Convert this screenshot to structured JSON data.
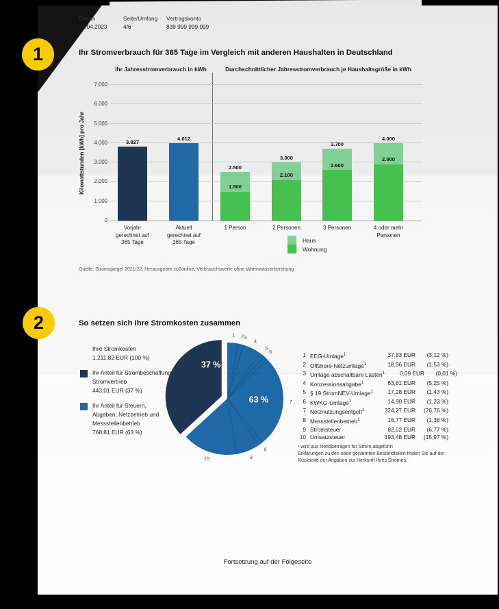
{
  "page": {
    "background_color": "#000000",
    "accent_yellow": "#F7CB05",
    "badges": {
      "one": "1",
      "two": "2"
    },
    "header": {
      "datum_label": "Datum",
      "datum_value": "04.04.2023",
      "seite_label": "Seite/Umfang",
      "seite_value": "4/6",
      "konto_label": "Vertragskonto",
      "konto_value": "839 999 999 999"
    },
    "footer": "Fortsetzung auf der Folgeseite"
  },
  "section1": {
    "title": "Ihr Stromverbrauch für 365 Tage im Vergleich mit anderen Haushalten in Deutschland",
    "source": "Quelle: Stromspiegel 2021/22, Herausgeber co2online, Verbrauchswerte ohne Warmwasserbereitung"
  },
  "section2": {
    "title": "So setzen sich Ihre Stromkosten zusammen",
    "total_label": "Ihre Stromkosten",
    "total_value": "1.211,82 EUR (100 %)",
    "seg1_label": "Ihr Anteil für Strombeschaffung und Stromvertrieb",
    "seg1_value": "443,01 EUR (37 %)",
    "seg2_label": "Ihr Anteil für Steuern, Abgaben, Netzbetrieb und Messstellenbetrieb",
    "seg2_value": "768,81 EUR (63 %)",
    "footnote1": "¹ wird aus Nettobeträgen für Strom abgeführt",
    "footnote2": "Erklärungen zu den oben genannten Bestandteilen finden Sie auf der Rückseite der Angaben zur Herkunft Ihres Stromes."
  },
  "chart_data": [
    {
      "type": "bar",
      "panel_left_title": "Ihr Jahresstromverbrauch in kWh",
      "panel_right_title": "Durchschnittlicher Jahresstromverbrauch je Haushaltsgröße in kWh",
      "ylabel": "Kilowattstunden [kWh] pro Jahr",
      "ylim": [
        0,
        7000
      ],
      "ytick_labels": [
        "0",
        "1.000",
        "2.000",
        "3.000",
        "4.000",
        "5.000",
        "6.000",
        "7.000"
      ],
      "grid": true,
      "left_bars": [
        {
          "category": "Vorjahr gerechnet auf 365 Tage",
          "value": 3827,
          "label": "3.827",
          "color": "#1E3553"
        },
        {
          "category": "Aktuell gerechnet auf 365 Tage",
          "value": 4012,
          "label": "4.012",
          "color": "#2069A8"
        }
      ],
      "right_bars": [
        {
          "category": "1 Person",
          "haus": 2500,
          "haus_label": "2.500",
          "wohnung": 1500,
          "wohnung_label": "1.500"
        },
        {
          "category": "2 Personen",
          "haus": 3000,
          "haus_label": "3.000",
          "wohnung": 2100,
          "wohnung_label": "2.100"
        },
        {
          "category": "3 Personen",
          "haus": 3700,
          "haus_label": "3.700",
          "wohnung": 2600,
          "wohnung_label": "2.600"
        },
        {
          "category": "4 oder mehr Personen",
          "haus": 4000,
          "haus_label": "4.000",
          "wohnung": 2900,
          "wohnung_label": "2.900"
        }
      ],
      "legend": [
        {
          "label": "Haus",
          "color": "#82D096"
        },
        {
          "label": "Wohnung",
          "color": "#46C150"
        }
      ]
    },
    {
      "type": "pie",
      "colors": {
        "main": "#1E3553",
        "secondary": "#2069A8",
        "divider": "#17537F"
      },
      "segments": [
        {
          "pct": 37,
          "pct_label": "37 %",
          "color": "#1E3553",
          "exploded": true
        },
        {
          "pct": 63,
          "pct_label": "63 %",
          "color": "#2069A8",
          "exploded": false
        }
      ],
      "items": [
        {
          "nr": "1",
          "name": "EEG-Umlage",
          "footnote": true,
          "amount": "37,83 EUR",
          "pct_text": "(3,12 %)",
          "pct": 3.12
        },
        {
          "nr": "2",
          "name": "Offshore-Netzumlage",
          "footnote": true,
          "amount": "18,56 EUR",
          "pct_text": "(1,53 %)",
          "pct": 1.53
        },
        {
          "nr": "3",
          "name": "Umlage abschaltbare Lasten",
          "footnote": true,
          "amount": "0,09 EUR",
          "pct_text": "(0,01 %)",
          "pct": 0.01
        },
        {
          "nr": "4",
          "name": "Konzessionsabgabe",
          "footnote": true,
          "amount": "63,61 EUR",
          "pct_text": "(5,25 %)",
          "pct": 5.25
        },
        {
          "nr": "5",
          "name": "§ 19 StromNEV-Umlage",
          "footnote": true,
          "amount": "17,28 EUR",
          "pct_text": "(1,43 %)",
          "pct": 1.43
        },
        {
          "nr": "6",
          "name": "KWKG-Umlage",
          "footnote": true,
          "amount": "14,90 EUR",
          "pct_text": "(1,23 %)",
          "pct": 1.23
        },
        {
          "nr": "7",
          "name": "Netznutzungsentgelt",
          "footnote": true,
          "amount": "324,27 EUR",
          "pct_text": "(26,76 %)",
          "pct": 26.76
        },
        {
          "nr": "8",
          "name": "Messstellenbetrieb",
          "footnote": true,
          "amount": "16,77 EUR",
          "pct_text": "(1,38 %)",
          "pct": 1.38
        },
        {
          "nr": "9",
          "name": "Stromsteuer",
          "footnote": false,
          "amount": "82,02 EUR",
          "pct_text": "(6,77 %)",
          "pct": 6.77
        },
        {
          "nr": "10",
          "name": "Umsatzsteuer",
          "footnote": false,
          "amount": "193,48 EUR",
          "pct_text": "(15,97 %)",
          "pct": 15.97
        }
      ]
    }
  ]
}
